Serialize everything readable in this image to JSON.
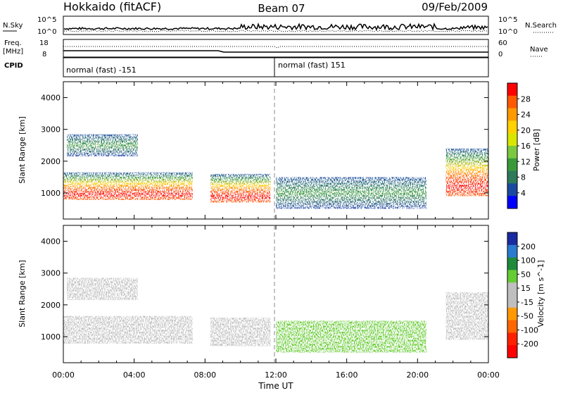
{
  "header": {
    "station": "Hokkaido (fitACF)",
    "beam": "Beam 07",
    "date": "09/Feb/2009"
  },
  "top_panels": {
    "nsky": {
      "label": "N.Sky",
      "right_label": "N.Search",
      "left_ticks": [
        "10^5",
        "10^0"
      ],
      "right_ticks": [
        "10^5",
        "10^0"
      ]
    },
    "freq": {
      "label_line1": "Freq.",
      "label_line2": "[MHz]",
      "right_label": "Nave",
      "left_ticks": [
        "18",
        "8"
      ],
      "right_ticks": [
        "60",
        "0"
      ]
    },
    "cpid": {
      "label": "CPID",
      "modes": [
        "normal (fast) -151",
        "normal (fast) 151"
      ]
    }
  },
  "chart_data": [
    {
      "type": "heatmap",
      "panel": "power",
      "xlabel": "",
      "ylabel": "Slant Range [km]",
      "x_ticks": [
        "00:00",
        "04:00",
        "08:00",
        "12:00",
        "16:00",
        "20:00",
        "00:00"
      ],
      "xlim": [
        0,
        24
      ],
      "ylim": [
        180,
        4500
      ],
      "y_ticks": [
        1000,
        2000,
        3000,
        4000
      ],
      "colorbar": {
        "label": "Power [dB]",
        "ticks": [
          "28",
          "24",
          "20",
          "16",
          "12",
          "8",
          "4"
        ],
        "colors": [
          "#ff0000",
          "#ff5a00",
          "#ff9a00",
          "#ffd200",
          "#d8e600",
          "#7cc840",
          "#3a9a3a",
          "#2e7a5a",
          "#1a4aa0",
          "#0000ff"
        ]
      },
      "echo_regions": [
        {
          "t0": 0.0,
          "t1": 7.3,
          "r0": 780,
          "r1": 1650,
          "strength": "strong"
        },
        {
          "t0": 0.2,
          "t1": 4.2,
          "r0": 2150,
          "r1": 2850,
          "strength": "weak"
        },
        {
          "t0": 8.3,
          "t1": 11.7,
          "r0": 700,
          "r1": 1600,
          "strength": "strong"
        },
        {
          "t0": 12.0,
          "t1": 20.5,
          "r0": 500,
          "r1": 1500,
          "strength": "weak"
        },
        {
          "t0": 21.6,
          "t1": 24.0,
          "r0": 900,
          "r1": 2400,
          "strength": "strong"
        }
      ]
    },
    {
      "type": "heatmap",
      "panel": "velocity",
      "xlabel": "Time UT",
      "ylabel": "Slant Range [km]",
      "x_ticks": [
        "00:00",
        "04:00",
        "08:00",
        "12:00",
        "16:00",
        "20:00",
        "00:00"
      ],
      "xlim": [
        0,
        24
      ],
      "ylim": [
        180,
        4500
      ],
      "y_ticks": [
        1000,
        2000,
        3000,
        4000
      ],
      "colorbar": {
        "label": "Velocity [m s^-1]",
        "ticks": [
          "200",
          "100",
          "50",
          "15",
          "-15",
          "-50",
          "-100",
          "-200"
        ],
        "colors": [
          "#1a2aa0",
          "#2a7ad0",
          "#1f8a3a",
          "#66cc33",
          "#bfbfbf",
          "#bfbfbf",
          "#ff9900",
          "#ff6600",
          "#ff2200",
          "#ff0000"
        ]
      },
      "echo_regions": [
        {
          "t0": 0.0,
          "t1": 7.3,
          "r0": 780,
          "r1": 1650,
          "velocity": "near zero"
        },
        {
          "t0": 0.2,
          "t1": 4.2,
          "r0": 2150,
          "r1": 2850,
          "velocity": "near zero"
        },
        {
          "t0": 8.3,
          "t1": 11.7,
          "r0": 700,
          "r1": 1600,
          "velocity": "near zero"
        },
        {
          "t0": 12.0,
          "t1": 20.5,
          "r0": 500,
          "r1": 1500,
          "velocity": "mixed, mostly +50 to +100"
        },
        {
          "t0": 21.6,
          "t1": 24.0,
          "r0": 900,
          "r1": 2400,
          "velocity": "near zero"
        }
      ]
    }
  ]
}
